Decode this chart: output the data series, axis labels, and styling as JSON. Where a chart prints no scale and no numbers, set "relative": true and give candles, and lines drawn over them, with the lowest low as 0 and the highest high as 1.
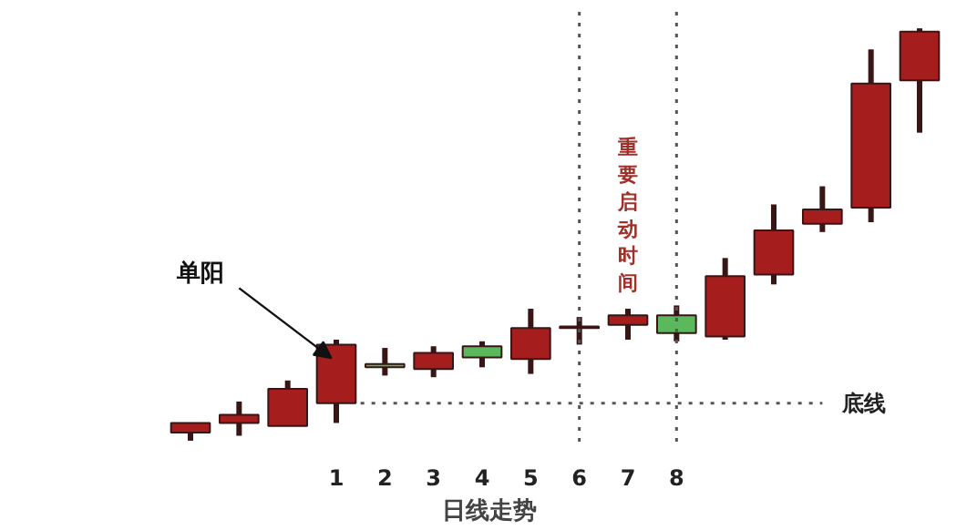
{
  "chart_data": {
    "type": "candlestick",
    "relative": true,
    "xlabel": "日线走势",
    "categories": [
      null,
      null,
      null,
      "1",
      "2",
      "3",
      "4",
      "5",
      "6",
      "7",
      "8",
      null,
      null,
      null,
      null,
      null
    ],
    "ohlc": [
      [
        0.02,
        0.043,
        0,
        0.043
      ],
      [
        0.043,
        0.095,
        0.012,
        0.063
      ],
      [
        0.036,
        0.146,
        0.036,
        0.126
      ],
      [
        0.091,
        0.245,
        0.043,
        0.233
      ],
      [
        0.186,
        0.225,
        0.158,
        0.178
      ],
      [
        0.174,
        0.229,
        0.154,
        0.213
      ],
      [
        0.229,
        0.241,
        0.178,
        0.202
      ],
      [
        0.198,
        0.32,
        0.162,
        0.273
      ],
      [
        0.277,
        0.3,
        0.233,
        0.273
      ],
      [
        0.281,
        0.32,
        0.245,
        0.304
      ],
      [
        0.304,
        0.328,
        0.241,
        0.261
      ],
      [
        0.253,
        0.443,
        0.245,
        0.399
      ],
      [
        0.403,
        0.573,
        0.379,
        0.51
      ],
      [
        0.526,
        0.617,
        0.506,
        0.561
      ],
      [
        0.565,
        0.949,
        0.53,
        0.866
      ],
      [
        0.874,
        1,
        0.747,
        0.992
      ]
    ],
    "colors": [
      "#a51d1d",
      "#a51d1d",
      "#a51d1d",
      "#a51d1d",
      "#5cb85c",
      "#a51d1d",
      "#5cb85c",
      "#a51d1d",
      "#5cb85c",
      "#a51d1d",
      "#5cb85c",
      "#a51d1d",
      "#a51d1d",
      "#a51d1d",
      "#a51d1d",
      "#a51d1d"
    ],
    "annotations": [
      {
        "text": "单阳",
        "x": "1",
        "y": 0.2
      },
      "重要启动时间"
    ],
    "ref_lines": [
      {
        "axis": "x",
        "value": "6",
        "label": null,
        "line_style": "dotted"
      },
      {
        "axis": "x",
        "value": "8",
        "label": null,
        "line_style": "dotted"
      },
      {
        "axis": "y",
        "value": 0.091,
        "label": "底线",
        "line_style": "dotted"
      }
    ],
    "tick_labels": "x",
    "grid": false
  }
}
